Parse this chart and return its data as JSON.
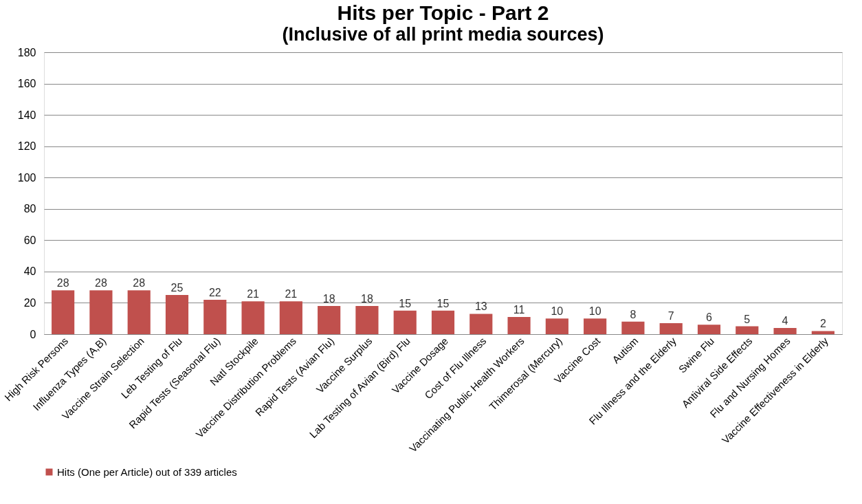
{
  "chart_data": {
    "type": "bar",
    "title": "Hits per Topic - Part 2",
    "subtitle": "(Inclusive of all print media sources)",
    "categories": [
      "High Risk Persons",
      "Influenza Types (A,B)",
      "Vaccine Strain Selection",
      "Leb Testing of Flu",
      "Rapid Tests (Seasonal Flu)",
      "Natl Stockpile",
      "Vaccine Distribution Problems",
      "Rapid Tests (Avian Flu)",
      "Vaccine Surplus",
      "Lab Testing of Avian (Bird) Flu",
      "Vaccine Dosage",
      "Cost of Flu Illness",
      "Vaccinating Public Health Workers",
      "Thimerosal (Mercury)",
      "Vaccine Cost",
      "Autism",
      "Flu Illness and the Elderly",
      "Swine Flu",
      "Antiviral Side Effects",
      "Flu and Nursing Homes",
      "Vaccine Effectiveness in Elderly"
    ],
    "series": [
      {
        "name": "Hits (One per Article) out of 339 articles",
        "color": "#c0504d",
        "values": [
          28,
          28,
          28,
          25,
          22,
          21,
          21,
          18,
          18,
          15,
          15,
          13,
          11,
          10,
          10,
          8,
          7,
          6,
          5,
          4,
          2
        ]
      }
    ],
    "ylim": [
      0,
      180
    ],
    "yticks": [
      0,
      20,
      40,
      60,
      80,
      100,
      120,
      140,
      160,
      180
    ],
    "grid": "y",
    "legend": "bottom",
    "data_labels": true
  }
}
